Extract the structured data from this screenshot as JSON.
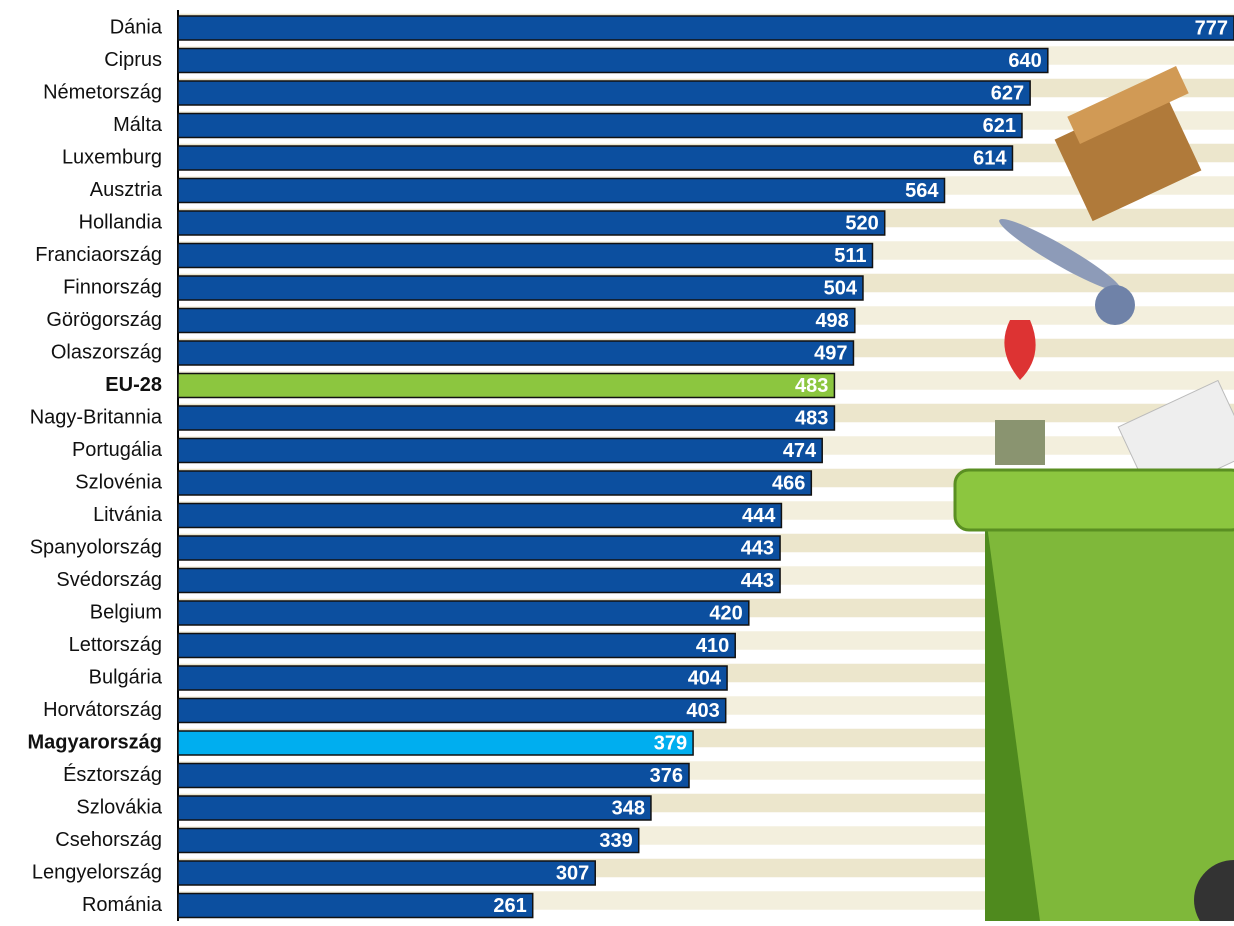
{
  "chart_data": {
    "type": "bar",
    "orientation": "horizontal",
    "categories": [
      "Dánia",
      "Ciprus",
      "Németország",
      "Málta",
      "Luxemburg",
      "Ausztria",
      "Hollandia",
      "Franciaország",
      "Finnország",
      "Görögország",
      "Olaszország",
      "EU-28",
      "Nagy-Britannia",
      "Portugália",
      "Szlovénia",
      "Litvánia",
      "Spanyolország",
      "Svédország",
      "Belgium",
      "Lettország",
      "Bulgária",
      "Horvátország",
      "Magyarország",
      "Észtország",
      "Szlovákia",
      "Csehország",
      "Lengyelország",
      "Románia"
    ],
    "values": [
      777,
      640,
      627,
      621,
      614,
      564,
      520,
      511,
      504,
      498,
      497,
      483,
      483,
      474,
      466,
      444,
      443,
      443,
      420,
      410,
      404,
      403,
      379,
      376,
      348,
      339,
      307,
      261
    ],
    "color": "#0c4f9f",
    "highlight_colors": {
      "11": "#8cc63f",
      "22": "#00aeef"
    }
  }
}
